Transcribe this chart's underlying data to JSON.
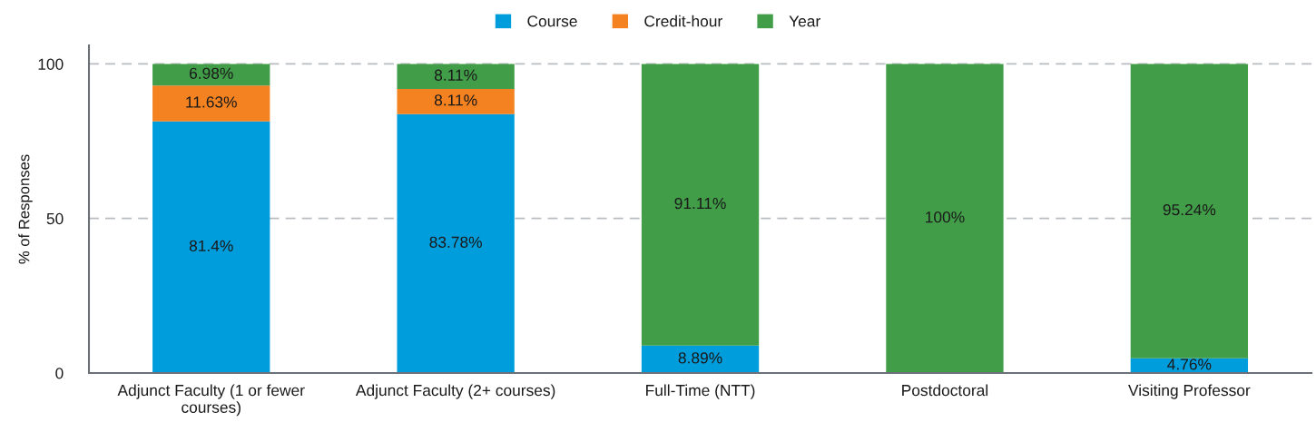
{
  "chart_data": {
    "type": "bar",
    "stacked": true,
    "categories": [
      "Adjunct Faculty (1 or fewer\ncourses)",
      "Adjunct Faculty (2+ courses)",
      "Full-Time (NTT)",
      "Postdoctoral",
      "Visiting Professor"
    ],
    "ylabel": "% of Responses",
    "series": [
      {
        "name": "Course",
        "color": "#009ddc",
        "values": [
          81.4,
          83.78,
          8.89,
          null,
          4.76
        ],
        "value_labels": [
          "81.4%",
          "83.78%",
          "8.89%",
          null,
          "4.76%"
        ]
      },
      {
        "name": "Credit-hour",
        "color": "#f48221",
        "values": [
          11.63,
          8.11,
          null,
          null,
          null
        ],
        "value_labels": [
          "11.63%",
          "8.11%",
          null,
          null,
          null
        ]
      },
      {
        "name": "Year",
        "color": "#419d48",
        "values": [
          6.98,
          8.11,
          91.11,
          100,
          95.24
        ],
        "value_labels": [
          "6.98%",
          "8.11%",
          "91.11%",
          "100%",
          "95.24%"
        ]
      }
    ],
    "ylim": [
      0,
      106
    ],
    "yticks": [
      0,
      50,
      100
    ],
    "grid": "y",
    "legend": "top"
  }
}
